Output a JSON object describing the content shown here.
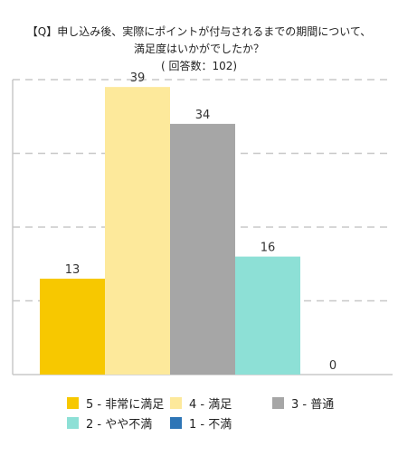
{
  "title": {
    "line1": "【Q】申し込み後、実際にポイントが付与されるまでの期間について、",
    "line2": "満足度はいかがでしたか？",
    "line3": "( 回答数：102)"
  },
  "chart_data": {
    "type": "bar",
    "title": "【Q】申し込み後、実際にポイントが付与されるまでの期間について、満足度はいかがでしたか？ ( 回答数：102)",
    "categories": [
      "5 - 非常に満足",
      "4 - 満足",
      "3 - 普通",
      "2 - やや不満",
      "1 - 不満"
    ],
    "values": [
      13,
      39,
      34,
      16,
      0
    ],
    "labels": [
      "13",
      "39",
      "34",
      "16",
      "0"
    ],
    "ylim": [
      0,
      40
    ],
    "grid": true,
    "legend_position": "bottom",
    "colors": [
      "#f7c800",
      "#fde99b",
      "#a6a6a6",
      "#8de0d6",
      "#2e75b6"
    ]
  },
  "legend": [
    {
      "label": "5 - 非常に満足",
      "color": "#f7c800"
    },
    {
      "label": "4 - 満足",
      "color": "#fde99b"
    },
    {
      "label": "3 - 普通",
      "color": "#a6a6a6"
    },
    {
      "label": "2 - やや不満",
      "color": "#8de0d6"
    },
    {
      "label": "1 - 不満",
      "color": "#2e75b6"
    }
  ]
}
